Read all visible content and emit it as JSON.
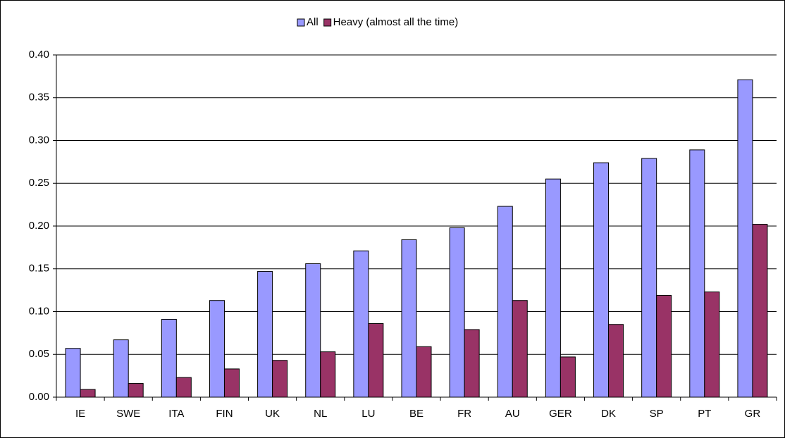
{
  "chart_data": {
    "type": "bar",
    "categories": [
      "IE",
      "SWE",
      "ITA",
      "FIN",
      "UK",
      "NL",
      "LU",
      "BE",
      "FR",
      "AU",
      "GER",
      "DK",
      "SP",
      "PT",
      "GR"
    ],
    "series": [
      {
        "name": "All",
        "color": "#9999ff",
        "values": [
          0.057,
          0.067,
          0.091,
          0.113,
          0.147,
          0.156,
          0.171,
          0.184,
          0.198,
          0.223,
          0.255,
          0.274,
          0.279,
          0.289,
          0.371
        ]
      },
      {
        "name": "Heavy (almost all the time)",
        "color": "#993366",
        "values": [
          0.009,
          0.016,
          0.023,
          0.033,
          0.043,
          0.053,
          0.086,
          0.059,
          0.079,
          0.113,
          0.047,
          0.085,
          0.119,
          0.123,
          0.202
        ]
      }
    ],
    "ylim": [
      0,
      0.4
    ],
    "yticks": [
      {
        "value": 0,
        "label": "0.00"
      },
      {
        "value": 0.05,
        "label": "0.05"
      },
      {
        "value": 0.1,
        "label": "0.10"
      },
      {
        "value": 0.15,
        "label": "0.15"
      },
      {
        "value": 0.2,
        "label": "0.20"
      },
      {
        "value": 0.25,
        "label": "0.25"
      },
      {
        "value": 0.3,
        "label": "0.30"
      },
      {
        "value": 0.35,
        "label": "0.35"
      },
      {
        "value": 0.4,
        "label": "0.40"
      }
    ],
    "grid": true,
    "legend": "top"
  }
}
